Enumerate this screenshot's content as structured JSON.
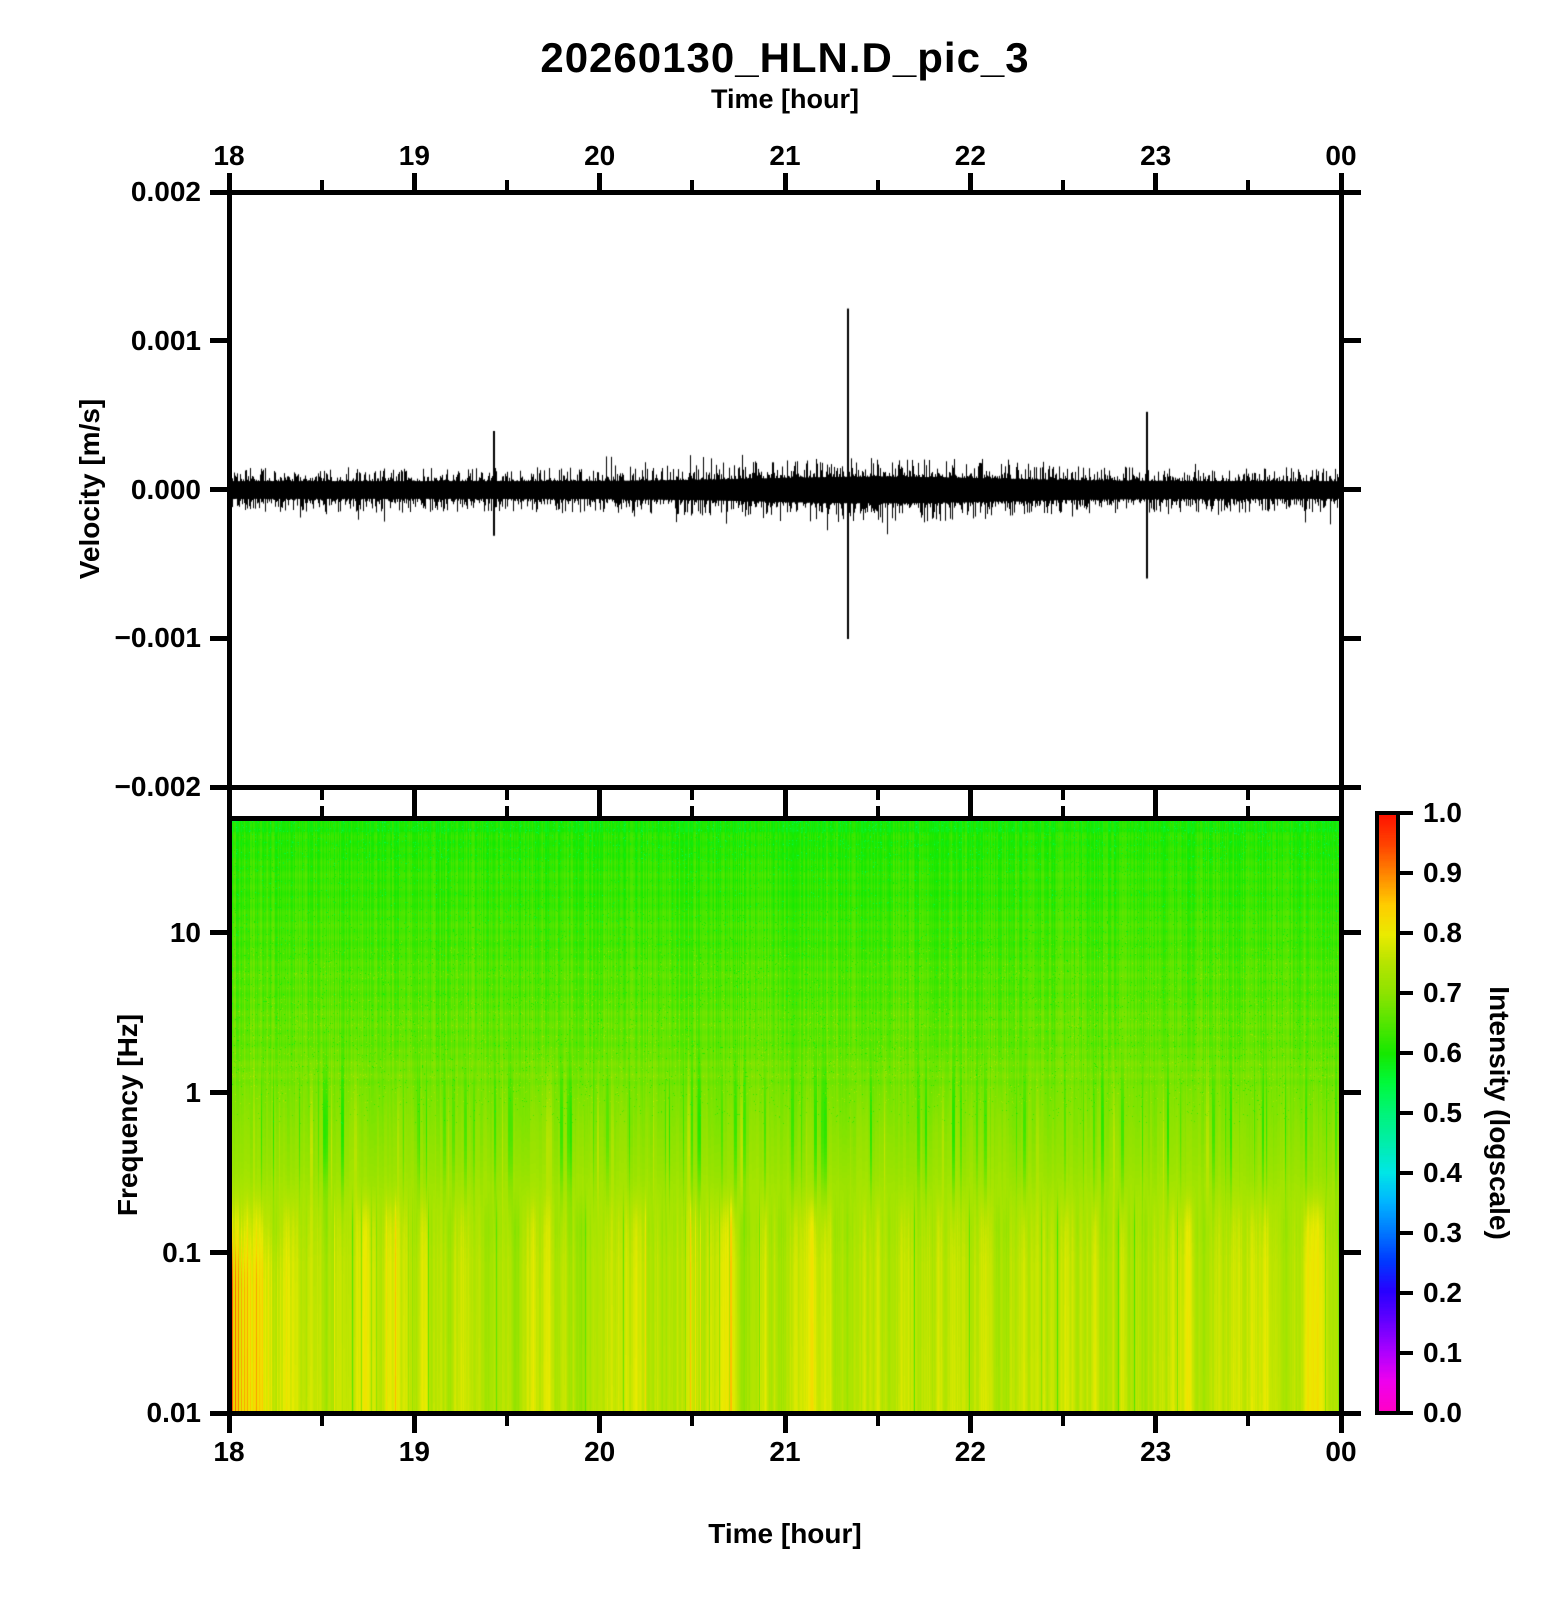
{
  "figure_title": "20260130_HLN.D_pic_3",
  "chart_data": [
    {
      "type": "line",
      "panel": "seismogram",
      "title": "20260130_HLN.D_pic_3",
      "xlabel": "Time [hour]",
      "xlabel_position": "top",
      "ylabel": "Velocity [m/s]",
      "x_tick_labels": [
        "18",
        "19",
        "20",
        "21",
        "22",
        "23",
        "00"
      ],
      "x_tick_hours": [
        18,
        19,
        20,
        21,
        22,
        23,
        24
      ],
      "x_minor_tick_hours": [
        18.5,
        19.5,
        20.5,
        21.5,
        22.5,
        23.5
      ],
      "xlim_hours": [
        18,
        24
      ],
      "ylim": [
        -0.002,
        0.002
      ],
      "y_tick_values": [
        0.002,
        0.001,
        0,
        -0.001,
        -0.002
      ],
      "y_tick_labels": [
        "0.002",
        "0.001",
        "0.000",
        "−0.001",
        "−0.002"
      ],
      "series_description": "continuous black seismic noise band of about ±0.0001 m/s with a broader noisy envelope between 20:00 and 22:30 and three transient spikes",
      "noise": {
        "band_amplitude": 0.00012,
        "envelope_bump": {
          "center_hour": 21.5,
          "sigma_hours": 0.9,
          "extra_amplitude": 6e-05
        }
      },
      "spikes": [
        {
          "time_hour": 19.42,
          "peak": 0.0004,
          "trough": -0.00031
        },
        {
          "time_hour": 21.34,
          "peak": 0.00123,
          "trough": -0.00101
        },
        {
          "time_hour": 22.96,
          "peak": 0.00053,
          "trough": -0.0006
        }
      ]
    },
    {
      "type": "heatmap",
      "panel": "spectrogram",
      "xlabel": "Time [hour]",
      "xlabel_position": "bottom",
      "ylabel": "Frequency [Hz]",
      "x_tick_labels": [
        "18",
        "19",
        "20",
        "21",
        "22",
        "23",
        "00"
      ],
      "x_tick_hours": [
        18,
        19,
        20,
        21,
        22,
        23,
        24
      ],
      "x_minor_tick_hours": [
        18.5,
        19.5,
        20.5,
        21.5,
        22.5,
        23.5
      ],
      "xlim_hours": [
        18,
        24
      ],
      "yscale": "log",
      "ylim_hz": [
        0.01,
        52
      ],
      "y_tick_values_hz": [
        10,
        1,
        0.1,
        0.01
      ],
      "y_tick_labels": [
        "10",
        "1",
        "0.1",
        "0.01"
      ],
      "intensity_profile": [
        [
          0.0,
          0.605
        ],
        [
          0.03,
          0.615
        ],
        [
          0.12,
          0.628
        ],
        [
          0.25,
          0.648
        ],
        [
          0.38,
          0.668
        ],
        [
          0.48,
          0.69
        ],
        [
          0.58,
          0.715
        ],
        [
          0.66,
          0.74
        ],
        [
          0.75,
          0.755
        ],
        [
          0.88,
          0.758
        ],
        [
          1.0,
          0.762
        ]
      ],
      "features": {
        "description": "green speckled texture above ~1.5 Hz, dense vertical green striping between ~0.2 and 1.5 Hz, smooth yellow columns below ~0.15 Hz, hot orange-red striped patch at 18:00-18:27 below ~0.3 Hz",
        "speckle_above_hz": 1.5,
        "green_stripe_band_hz": [
          0.2,
          1.5
        ],
        "smooth_yellow_band_hz": [
          0.01,
          0.15
        ],
        "hot_patch": {
          "time_hours": [
            18.0,
            18.45
          ],
          "below_hz": 0.3,
          "extra_intensity": 0.09
        }
      }
    }
  ],
  "colorbar": {
    "label": "Intensity (logscale)",
    "tick_labels": [
      "1.0",
      "0.9",
      "0.8",
      "0.7",
      "0.6",
      "0.5",
      "0.4",
      "0.3",
      "0.2",
      "0.1",
      "0.0"
    ],
    "tick_values": [
      1,
      0.9,
      0.8,
      0.7,
      0.6,
      0.5,
      0.4,
      0.3,
      0.2,
      0.1,
      0
    ],
    "range": [
      0.0,
      1.0
    ],
    "colormap_name": "reversed gist_rainbow (magenta low to red high)",
    "colormap_stops": [
      [
        0.0,
        "#ff00c8"
      ],
      [
        0.05,
        "#ee00ee"
      ],
      [
        0.1,
        "#aa00ff"
      ],
      [
        0.15,
        "#6400ff"
      ],
      [
        0.2,
        "#2800ff"
      ],
      [
        0.25,
        "#0038ff"
      ],
      [
        0.3,
        "#0078ff"
      ],
      [
        0.35,
        "#00b4ff"
      ],
      [
        0.4,
        "#00e6e6"
      ],
      [
        0.45,
        "#00eeaa"
      ],
      [
        0.5,
        "#00f478"
      ],
      [
        0.55,
        "#00fa3c"
      ],
      [
        0.6,
        "#16e800"
      ],
      [
        0.65,
        "#52e600"
      ],
      [
        0.7,
        "#8ce300"
      ],
      [
        0.75,
        "#b4e400"
      ],
      [
        0.8,
        "#eaea00"
      ],
      [
        0.85,
        "#ffcc00"
      ],
      [
        0.9,
        "#ff8800"
      ],
      [
        0.95,
        "#ff4400"
      ],
      [
        1.0,
        "#ff1400"
      ]
    ]
  }
}
